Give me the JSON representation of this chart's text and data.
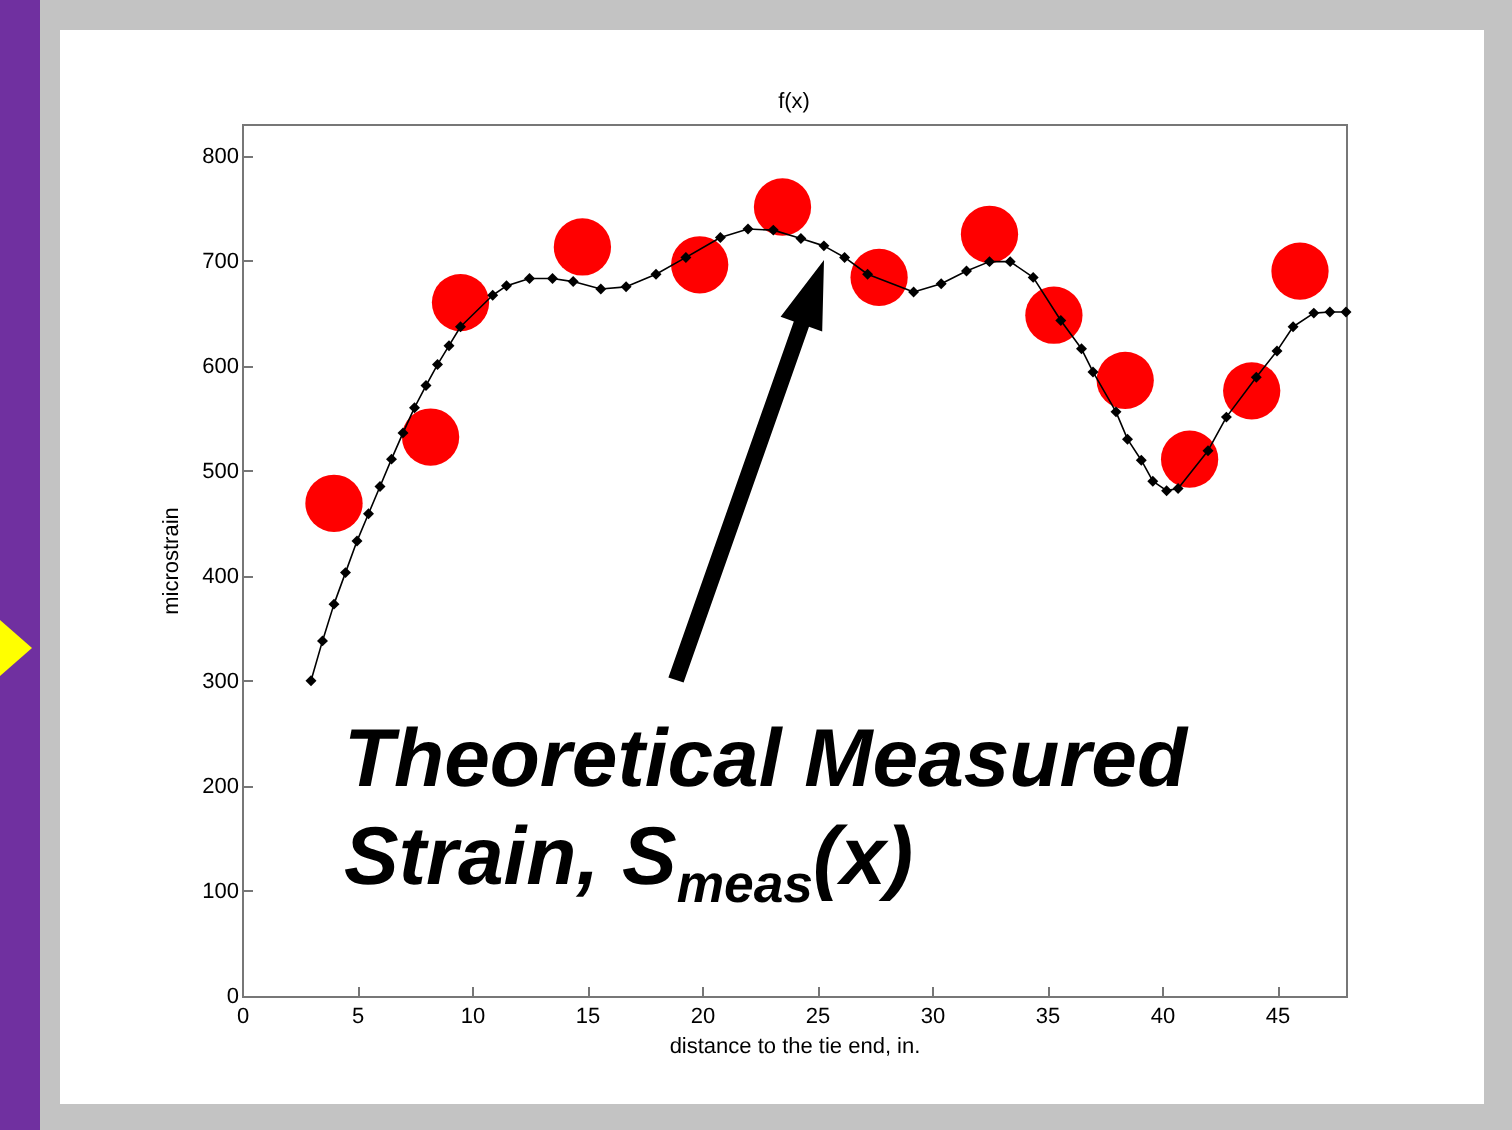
{
  "chart_data": {
    "type": "line",
    "title": "f(x)",
    "xlabel": "distance to the tie end, in.",
    "ylabel": "microstrain",
    "xlim": [
      0,
      48
    ],
    "ylim": [
      0,
      830
    ],
    "xticks": [
      0,
      5,
      10,
      15,
      20,
      25,
      30,
      35,
      40,
      45
    ],
    "yticks": [
      0,
      100,
      200,
      300,
      400,
      500,
      600,
      700,
      800
    ],
    "grid": false,
    "series": [
      {
        "marker": "diamond",
        "color": "#000000",
        "x": [
          3.0,
          3.5,
          4.0,
          4.5,
          5.0,
          5.5,
          6.0,
          6.5,
          7.0,
          7.5,
          8.0,
          8.5,
          9.0,
          9.5,
          10.9,
          11.5,
          12.5,
          13.5,
          14.4,
          15.6,
          16.7,
          18.0,
          19.3,
          20.8,
          22.0,
          23.1,
          24.3,
          25.3,
          26.2,
          27.2,
          29.2,
          30.4,
          31.5,
          32.5,
          33.4,
          34.4,
          35.6,
          36.5,
          37.0,
          38.0,
          38.5,
          39.1,
          39.6,
          40.2,
          40.7,
          42.0,
          42.8,
          44.1,
          45.0,
          45.7,
          46.6,
          47.3,
          48.0
        ],
        "values": [
          300,
          338,
          373,
          403,
          433,
          459,
          485,
          511,
          536,
          560,
          581,
          601,
          619,
          637,
          667,
          676,
          683,
          683,
          680,
          673,
          675,
          687,
          703,
          722,
          730,
          729,
          721,
          714,
          703,
          687,
          670,
          678,
          690,
          699,
          699,
          684,
          643,
          616,
          594,
          556,
          530,
          510,
          490,
          481,
          483,
          519,
          551,
          589,
          614,
          637,
          650,
          651,
          651
        ]
      },
      {
        "type": "scatter",
        "marker": "circle",
        "color": "#ff0000",
        "x": [
          4.0,
          8.2,
          9.5,
          14.8,
          19.9,
          23.5,
          27.7,
          32.5,
          35.3,
          38.4,
          41.2,
          43.9,
          46.0
        ],
        "values": [
          469,
          532,
          660,
          713,
          696,
          751,
          684,
          725,
          648,
          586,
          511,
          576,
          690
        ]
      }
    ],
    "annotations": [
      "Theoretical Measured Strain, S$_{meas}$(x)"
    ]
  }
}
